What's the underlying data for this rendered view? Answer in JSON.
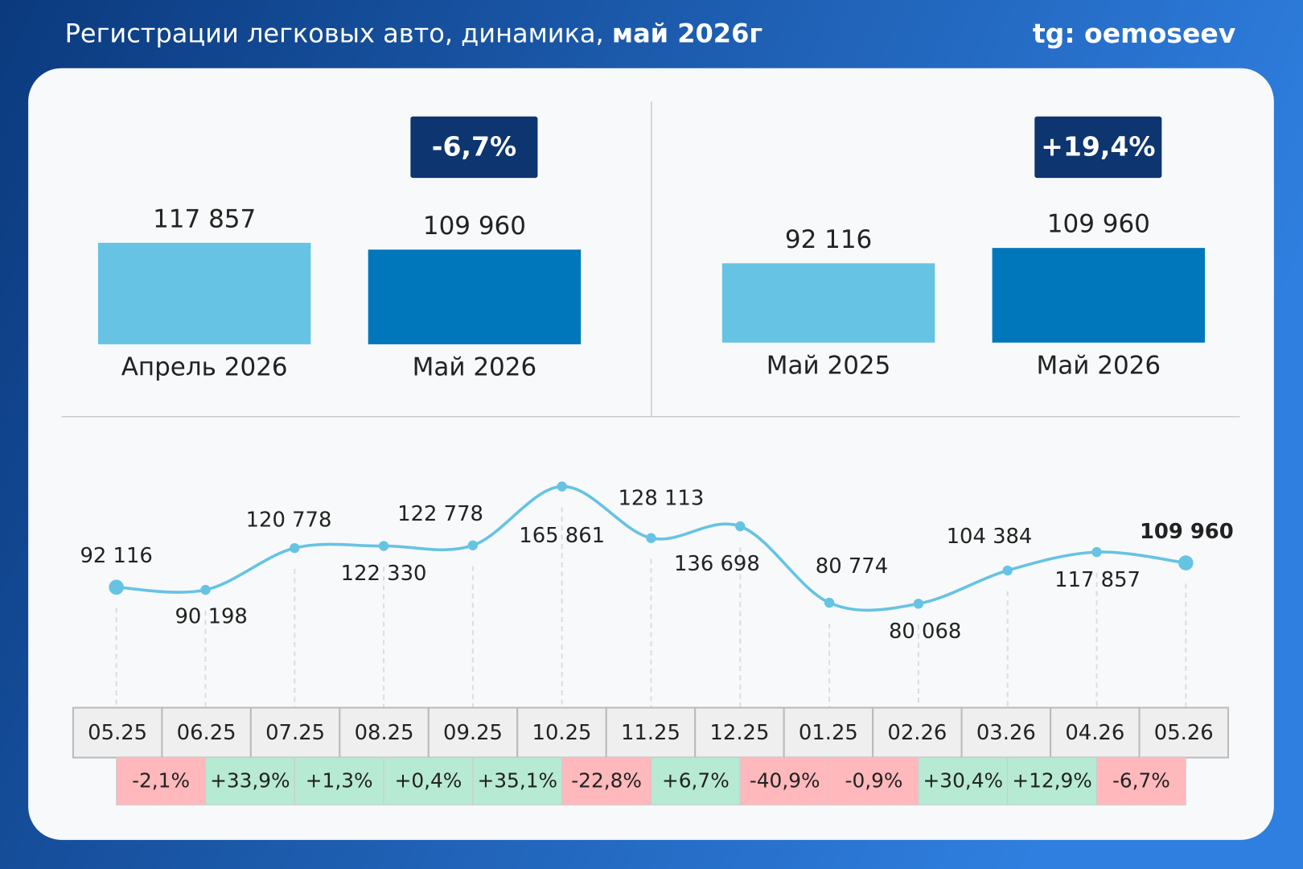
{
  "header": {
    "title": "Регистрации легковых авто, динамика,",
    "title_bold": "май 2026г",
    "handle": "tg: oemoseev"
  },
  "chart_data": [
    {
      "type": "bar",
      "annotation": "-6,7%",
      "categories": [
        "Апрель 2026",
        "Май 2026"
      ],
      "values": [
        117857,
        109960
      ],
      "value_labels": [
        "117 857",
        "109 960"
      ],
      "colors": [
        "#66c3e3",
        "#0077bb"
      ]
    },
    {
      "type": "bar",
      "annotation": "+19,4%",
      "categories": [
        "Май 2025",
        "Май 2026"
      ],
      "values": [
        92116,
        109960
      ],
      "value_labels": [
        "92 116",
        "109 960"
      ],
      "colors": [
        "#66c3e3",
        "#0077bb"
      ]
    },
    {
      "type": "line",
      "categories": [
        "05.25",
        "06.25",
        "07.25",
        "08.25",
        "09.25",
        "10.25",
        "11.25",
        "12.25",
        "01.25",
        "02.26",
        "03.26",
        "04.26",
        "05.26"
      ],
      "values": [
        92116,
        90198,
        120778,
        122330,
        122778,
        165861,
        128113,
        136698,
        80774,
        80068,
        104384,
        117857,
        109960
      ],
      "value_labels": [
        "92 116",
        "90 198",
        "120 778",
        "122 330",
        "122 778",
        "165 861",
        "128 113",
        "136 698",
        "80 774",
        "80 068",
        "104 384",
        "117 857",
        "109 960"
      ],
      "color": "#66c3e3",
      "changes": {
        "values": [
          -2.1,
          33.9,
          1.3,
          0.4,
          35.1,
          -22.8,
          6.7,
          -40.9,
          -0.9,
          30.4,
          12.9,
          -6.7
        ],
        "value_labels": [
          "-2,1%",
          "+33,9%",
          "+1,3%",
          "+0,4%",
          "+35,1%",
          "-22,8%",
          "+6,7%",
          "-40,9%",
          "-0,9%",
          "+30,4%",
          "+12,9%",
          "-6,7%"
        ],
        "positive_color": "#b7ead3",
        "negative_color": "#ffb8bc"
      }
    }
  ]
}
